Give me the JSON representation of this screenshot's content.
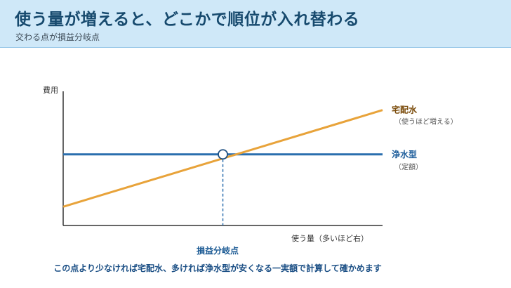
{
  "header": {
    "title": "使う量が増えると、どこかで順位が入れ替わる",
    "subtitle": "交わる点が損益分岐点"
  },
  "chart_data": {
    "type": "line",
    "ylabel": "費用",
    "xlabel": "使う量（多いほど右）",
    "series": [
      {
        "name": "宅配水",
        "note": "（使うほど増える）",
        "color": "#e8a33a",
        "start": 0.14,
        "end": 0.86
      },
      {
        "name": "浄水型",
        "note": "（定額）",
        "color": "#2a6fae",
        "start": 0.53,
        "end": 0.53
      }
    ],
    "break_even": {
      "label": "損益分岐点",
      "x": 0.5,
      "y": 0.53
    },
    "grid": false
  },
  "caption": "この点より少なければ宅配水、多ければ浄水型が安くなる一実額で計算して確かめます"
}
